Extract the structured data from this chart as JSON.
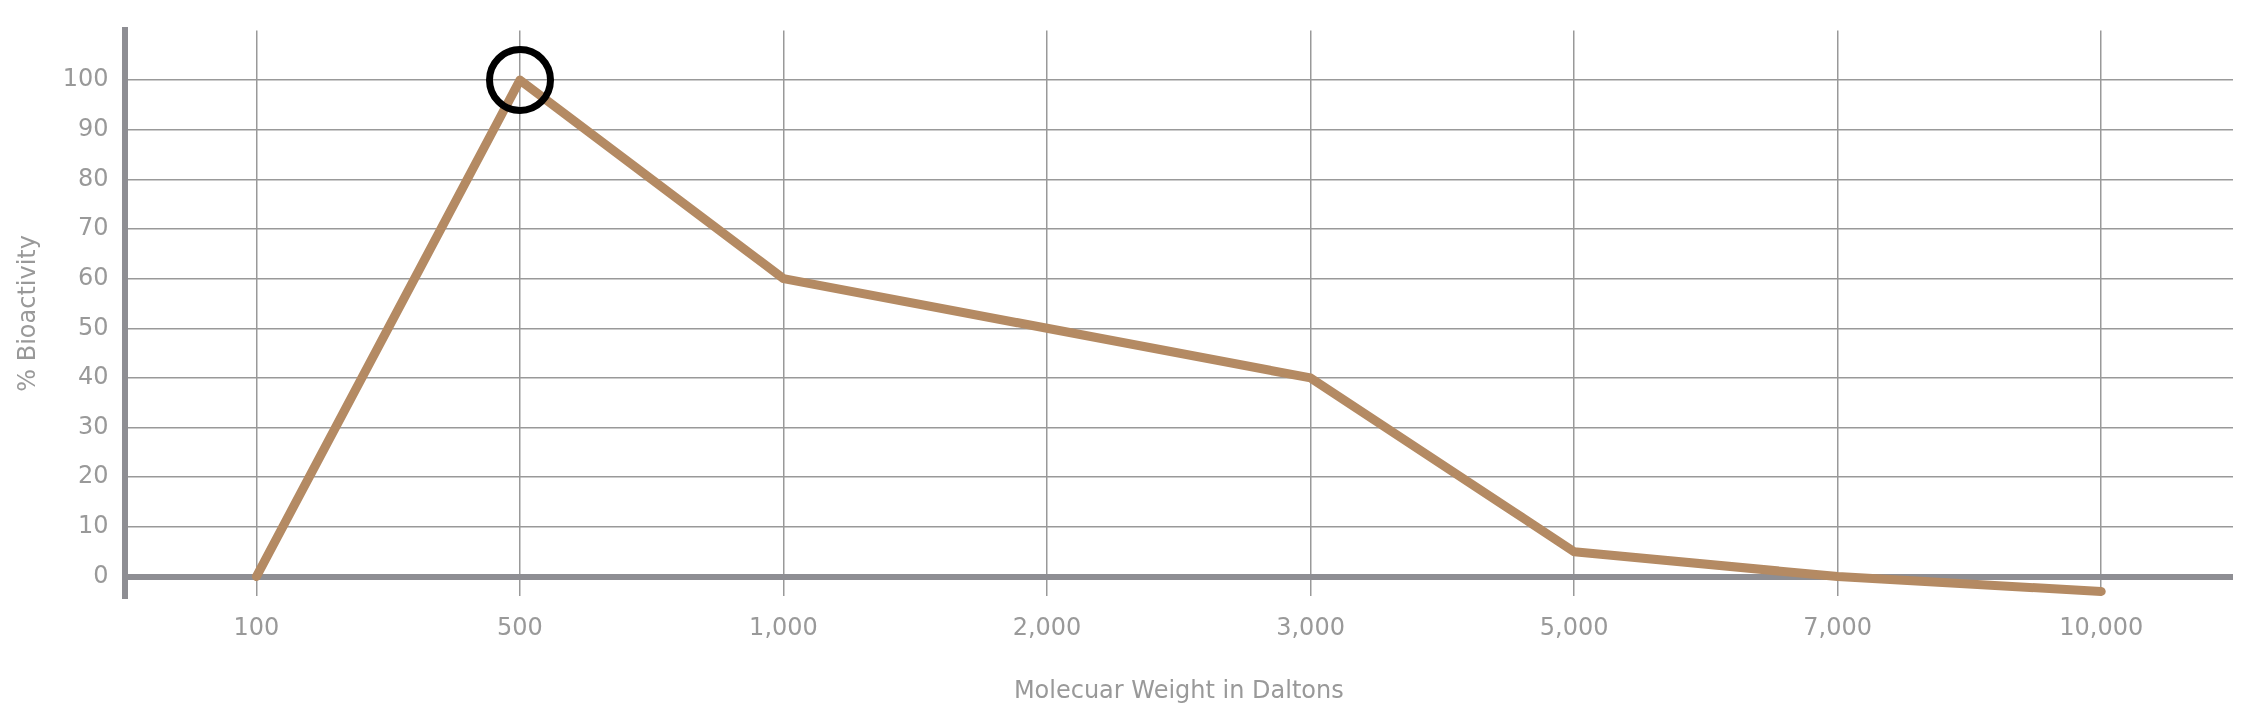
{
  "chart_data": {
    "type": "line",
    "xlabel": "Molecuar Weight in Daltons",
    "ylabel": "% Bioactivity",
    "categories": [
      "100",
      "500",
      "1,000",
      "2,000",
      "3,000",
      "5,000",
      "7,000",
      "10,000"
    ],
    "series": [
      {
        "color": "#b48a63",
        "values": [
          0,
          100,
          60,
          50,
          40,
          5,
          0,
          -3
        ]
      }
    ],
    "ylim": [
      -4,
      110
    ],
    "yticks": [
      0,
      10,
      20,
      30,
      40,
      50,
      60,
      70,
      80,
      90,
      100
    ],
    "grid": true,
    "legend": false,
    "marker": "none",
    "line_style": "solid"
  }
}
